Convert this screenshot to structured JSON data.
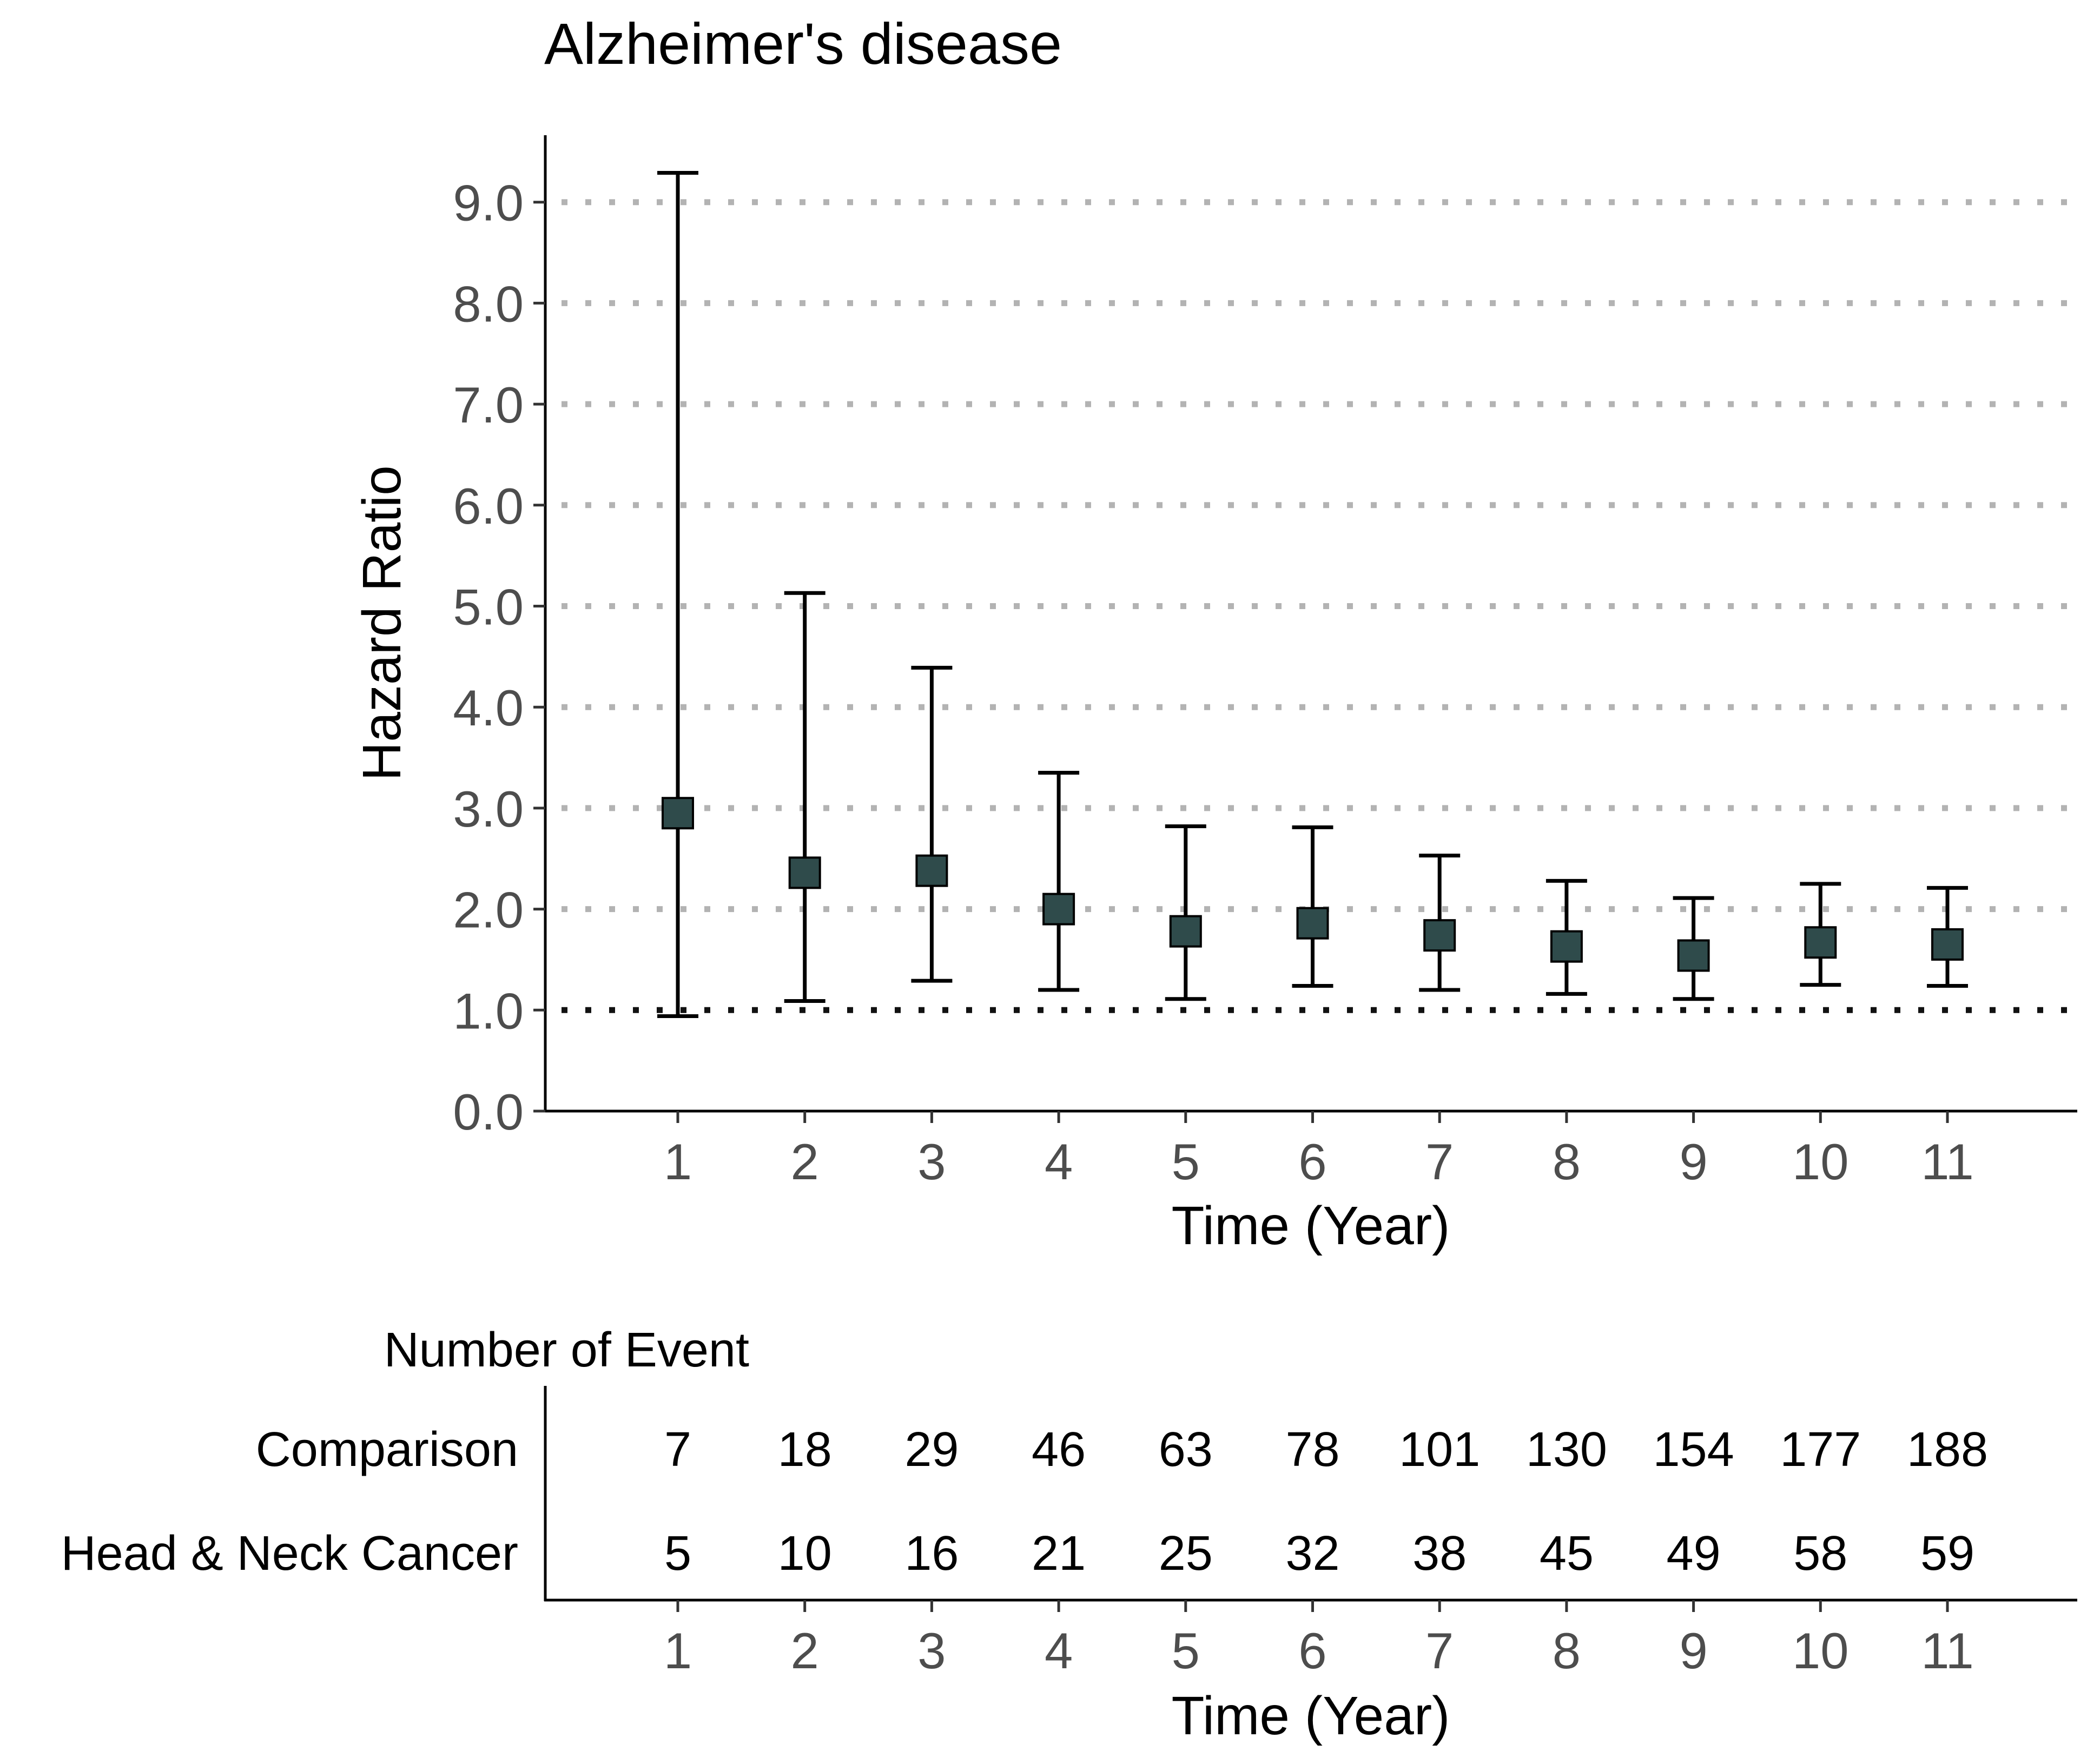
{
  "chart_data": [
    {
      "type": "errorbar",
      "title": "Alzheimer's disease",
      "xlabel": "Time (Year)",
      "ylabel": "Hazard Ratio",
      "x": [
        1,
        2,
        3,
        4,
        5,
        6,
        7,
        8,
        9,
        10,
        11
      ],
      "hr": [
        2.95,
        2.36,
        2.38,
        2.0,
        1.78,
        1.86,
        1.74,
        1.63,
        1.54,
        1.67,
        1.65
      ],
      "ci_lower": [
        0.94,
        1.09,
        1.29,
        1.2,
        1.11,
        1.24,
        1.2,
        1.16,
        1.11,
        1.25,
        1.24
      ],
      "ci_upper": [
        9.29,
        5.13,
        4.39,
        3.35,
        2.82,
        2.81,
        2.53,
        2.28,
        2.11,
        2.25,
        2.21
      ],
      "x_ticks": [
        "1",
        "2",
        "3",
        "4",
        "5",
        "6",
        "7",
        "8",
        "9",
        "10",
        "11"
      ],
      "y_ticks": [
        "0.0",
        "1.0",
        "2.0",
        "3.0",
        "4.0",
        "5.0",
        "6.0",
        "7.0",
        "8.0",
        "9.0"
      ],
      "ylim": [
        0,
        9.7
      ],
      "reference_line": 1.0,
      "grid": "horizontal-dotted",
      "marker_color": "#2f4b4b"
    },
    {
      "type": "table",
      "title": "Number of Event",
      "xlabel": "Time (Year)",
      "x_ticks": [
        "1",
        "2",
        "3",
        "4",
        "5",
        "6",
        "7",
        "8",
        "9",
        "10",
        "11"
      ],
      "rows": [
        {
          "label": "Comparison",
          "values": [
            "7",
            "18",
            "29",
            "46",
            "63",
            "78",
            "101",
            "130",
            "154",
            "177",
            "188"
          ]
        },
        {
          "label": "Head & Neck Cancer",
          "values": [
            "5",
            "10",
            "16",
            "21",
            "25",
            "32",
            "38",
            "45",
            "49",
            "58",
            "59"
          ]
        }
      ]
    }
  ]
}
